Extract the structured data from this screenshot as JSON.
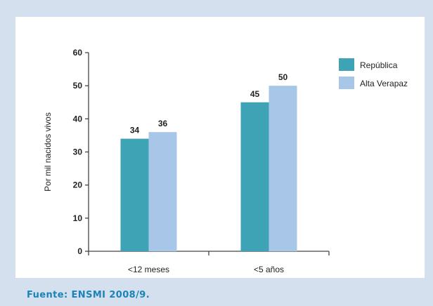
{
  "chart_data": {
    "type": "bar",
    "categories": [
      "<12 meses",
      "<5 años"
    ],
    "series": [
      {
        "name": "República",
        "values": [
          34,
          45
        ],
        "color": "#3ea3b5"
      },
      {
        "name": "Alta Verapaz",
        "values": [
          36,
          50
        ],
        "color": "#a8c6e8"
      }
    ],
    "ylabel": "Por mil nacidos vivos",
    "ylim": [
      0,
      60
    ],
    "yticks": [
      0,
      10,
      20,
      30,
      40,
      50,
      60
    ],
    "grid": false,
    "legend": "top-right"
  },
  "source": "Fuente: ENSMI 2008/9."
}
